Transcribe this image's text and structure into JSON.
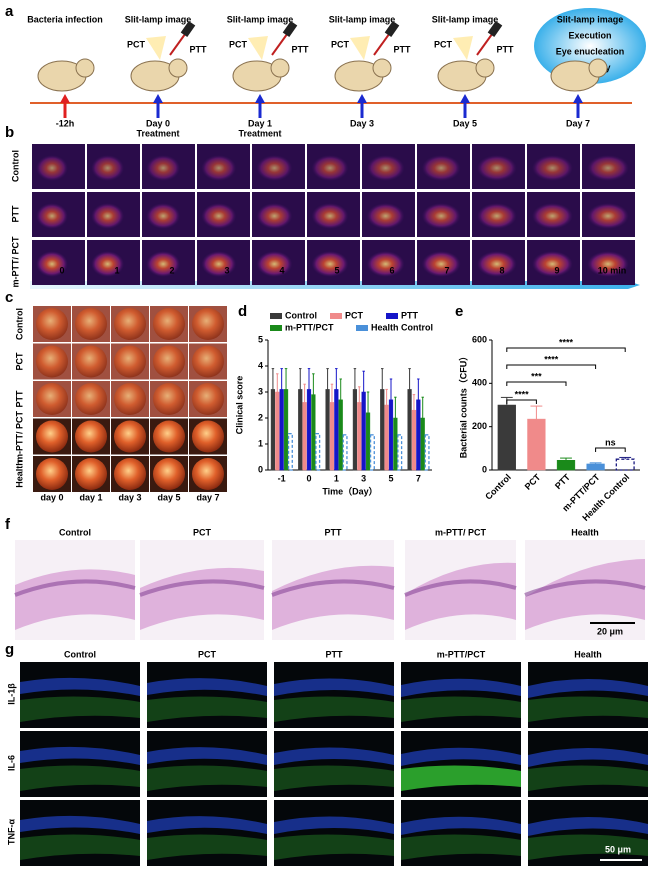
{
  "panel_labels": [
    "a",
    "b",
    "c",
    "d",
    "e",
    "f",
    "g"
  ],
  "panel_a": {
    "top_labels": [
      "Bacteria infection",
      "Slit-lamp image",
      "Slit-lamp image",
      "Slit-lamp image",
      "Slit-lamp image"
    ],
    "cloud": [
      "Slit-lamp image",
      "Execution",
      "Eye enucleation",
      "Histology"
    ],
    "device_labels": [
      "PCT",
      "PTT"
    ],
    "timepoints": [
      [
        "-12h"
      ],
      [
        "Day 0",
        "Treatment"
      ],
      [
        "Day 1",
        "Treatment"
      ],
      [
        "Day 3"
      ],
      [
        "Day 5"
      ],
      [
        "Day 7"
      ]
    ]
  },
  "panel_b": {
    "rows": [
      "Control",
      "PTT",
      "m-PTT/ PCT"
    ],
    "times": [
      "0",
      "1",
      "2",
      "3",
      "4",
      "5",
      "6",
      "7",
      "8",
      "9",
      "10 min"
    ]
  },
  "panel_c": {
    "rows": [
      "Control",
      "PCT",
      "PTT",
      "m-PTT/ PCT",
      "Health"
    ],
    "columns": [
      "day 0",
      "day 1",
      "day 3",
      "day 5",
      "day 7"
    ]
  },
  "panel_f": {
    "columns": [
      "Control",
      "PCT",
      "PTT",
      "m-PTT/ PCT",
      "Health"
    ],
    "scale": "20 μm"
  },
  "panel_g": {
    "columns": [
      "Control",
      "PCT",
      "PTT",
      "m-PTT/PCT",
      "Health"
    ],
    "rows": [
      "IL-1β",
      "IL-6",
      "TNF-α"
    ],
    "scale": "50 μm"
  },
  "chart_data": [
    {
      "type": "bar",
      "x_label": "Time（Day）",
      "y_label": "Clinical score",
      "categories": [
        "-1",
        "0",
        "1",
        "3",
        "5",
        "7"
      ],
      "ylim": [
        0,
        5
      ],
      "yticks": [
        0,
        1,
        2,
        3,
        4,
        5
      ],
      "series": [
        {
          "name": "Control",
          "color": "#3a3a3a",
          "values": [
            3.1,
            3.1,
            3.1,
            3.1,
            3.1,
            3.1
          ],
          "errors": [
            0.8,
            0.8,
            0.8,
            0.8,
            0.8,
            0.8
          ]
        },
        {
          "name": "PCT",
          "color": "#f08a8a",
          "values": [
            3.0,
            2.6,
            2.6,
            2.6,
            2.5,
            2.3
          ],
          "errors": [
            0.7,
            0.7,
            0.7,
            0.6,
            0.6,
            0.6
          ]
        },
        {
          "name": "PTT",
          "color": "#1515c8",
          "values": [
            3.1,
            3.1,
            3.1,
            3.0,
            2.7,
            2.7
          ],
          "errors": [
            0.8,
            0.8,
            0.8,
            0.8,
            0.8,
            0.8
          ]
        },
        {
          "name": "m-PTT/PCT",
          "color": "#1a8a1a",
          "values": [
            3.1,
            2.9,
            2.7,
            2.2,
            2.0,
            2.0
          ],
          "errors": [
            0.8,
            0.8,
            0.8,
            0.8,
            0.8,
            0.8
          ]
        },
        {
          "name": "Health Control",
          "color": "#4a90d9",
          "style": "dashed",
          "values": [
            1.4,
            1.4,
            1.35,
            1.35,
            1.35,
            1.35
          ],
          "errors": [
            0,
            0,
            0,
            0,
            0,
            0
          ]
        }
      ]
    },
    {
      "type": "bar",
      "y_label": "Bacterial counts（CFU）",
      "categories": [
        "Control",
        "PCT",
        "PTT",
        "m-PTT/PCT",
        "Health Control"
      ],
      "values": [
        300,
        235,
        45,
        28,
        50
      ],
      "errors": [
        35,
        60,
        10,
        5,
        8
      ],
      "colors": [
        "#3a3a3a",
        "#f08a8a",
        "#1a8a1a",
        "#4a90d9",
        "#1a1a80"
      ],
      "styles": [
        "solid",
        "solid",
        "solid",
        "solid",
        "dashed"
      ],
      "ylim": [
        0,
        600
      ],
      "yticks": [
        0,
        200,
        400,
        600
      ],
      "annotations": [
        "****",
        "****",
        "***",
        "****",
        "ns"
      ]
    }
  ]
}
